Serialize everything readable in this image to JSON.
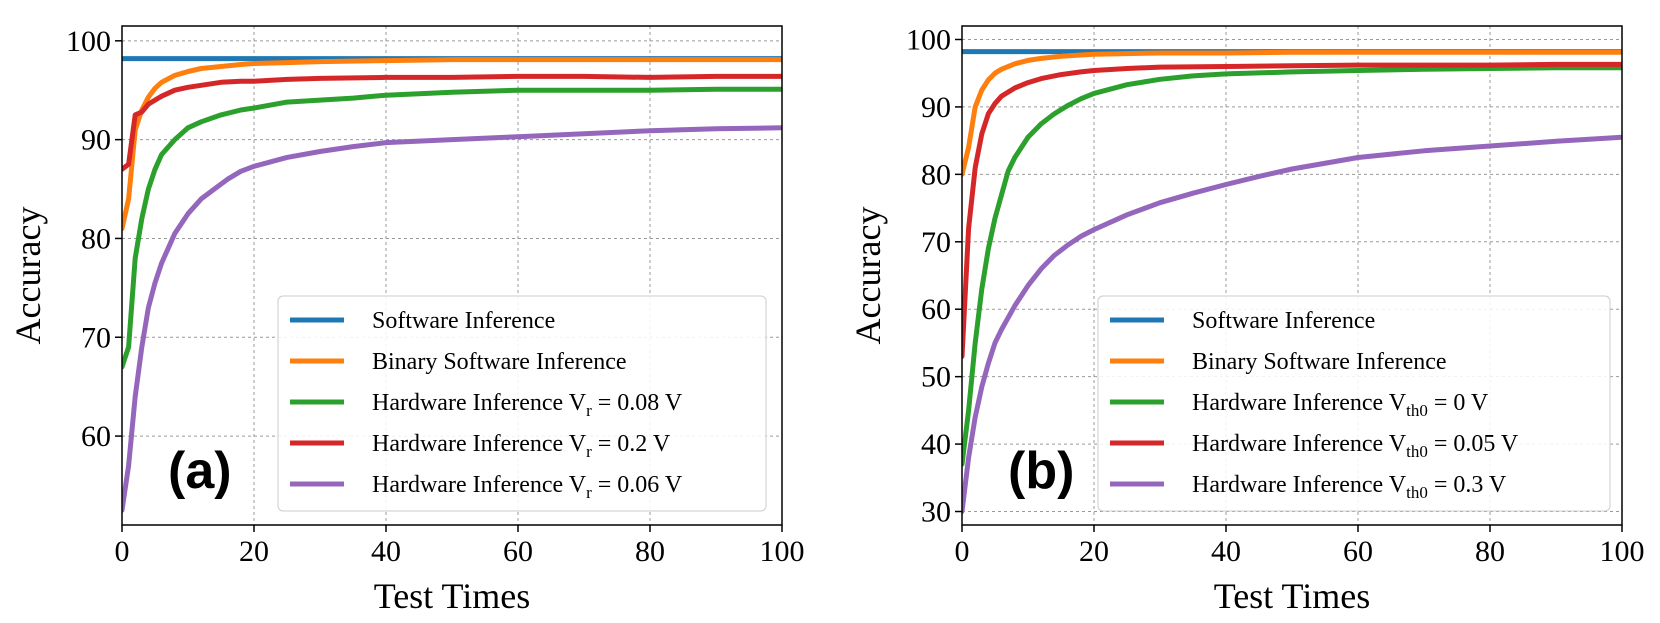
{
  "chart_data": [
    {
      "type": "line",
      "panel_tag": "(a)",
      "xlabel": "Test Times",
      "ylabel": "Accuracy",
      "xlim": [
        0,
        100
      ],
      "ylim": [
        51,
        101.5
      ],
      "xticks": [
        0,
        20,
        40,
        60,
        80,
        100
      ],
      "yticks": [
        60,
        70,
        80,
        90,
        100
      ],
      "grid": true,
      "legend_position": "lower-right",
      "series": [
        {
          "name": "Software Inference",
          "color": "#1f77b4",
          "x": [
            0,
            100
          ],
          "values": [
            98.2,
            98.2
          ]
        },
        {
          "name": "Binary Software Inference",
          "color": "#ff7f0e",
          "x": [
            0,
            1,
            2,
            3,
            4,
            5,
            6,
            8,
            10,
            12,
            15,
            18,
            20,
            25,
            30,
            40,
            50,
            60,
            70,
            80,
            90,
            100
          ],
          "values": [
            81,
            84,
            91,
            93,
            94.3,
            95.2,
            95.8,
            96.5,
            96.9,
            97.2,
            97.4,
            97.6,
            97.7,
            97.8,
            97.9,
            98.0,
            98.1,
            98.1,
            98.1,
            98.1,
            98.1,
            98.1
          ]
        },
        {
          "name": "Hardware Inference V_r = 0.08 V",
          "color": "#2ca02c",
          "x": [
            0,
            1,
            2,
            3,
            4,
            5,
            6,
            8,
            10,
            12,
            15,
            18,
            20,
            25,
            30,
            35,
            40,
            50,
            60,
            70,
            80,
            90,
            100
          ],
          "values": [
            67,
            69,
            78,
            82,
            85,
            87,
            88.5,
            90,
            91.2,
            91.8,
            92.5,
            93,
            93.2,
            93.8,
            94.0,
            94.2,
            94.5,
            94.8,
            95.0,
            95.0,
            95.0,
            95.1,
            95.1
          ]
        },
        {
          "name": "Hardware Inference V_r = 0.2 V",
          "color": "#d62728",
          "x": [
            0,
            1,
            2,
            3,
            4,
            5,
            6,
            8,
            10,
            12,
            15,
            18,
            20,
            25,
            30,
            40,
            50,
            60,
            70,
            80,
            90,
            100
          ],
          "values": [
            87,
            87.5,
            92.5,
            92.8,
            93.6,
            94.0,
            94.4,
            95.0,
            95.3,
            95.5,
            95.8,
            95.9,
            95.9,
            96.1,
            96.2,
            96.3,
            96.3,
            96.4,
            96.4,
            96.3,
            96.4,
            96.4
          ]
        },
        {
          "name": "Hardware Inference V_r = 0.06 V",
          "color": "#9467bd",
          "x": [
            0,
            1,
            2,
            3,
            4,
            5,
            6,
            7,
            8,
            10,
            12,
            14,
            16,
            18,
            20,
            25,
            30,
            35,
            40,
            50,
            60,
            70,
            80,
            90,
            100
          ],
          "values": [
            52.5,
            57,
            64,
            69,
            73,
            75.5,
            77.5,
            79,
            80.5,
            82.5,
            84,
            85,
            86,
            86.8,
            87.3,
            88.2,
            88.8,
            89.3,
            89.7,
            90.0,
            90.3,
            90.6,
            90.9,
            91.1,
            91.2
          ]
        }
      ]
    },
    {
      "type": "line",
      "panel_tag": "(b)",
      "xlabel": "Test Times",
      "ylabel": "Accuracy",
      "xlim": [
        0,
        100
      ],
      "ylim": [
        28,
        102
      ],
      "xticks": [
        0,
        20,
        40,
        60,
        80,
        100
      ],
      "yticks": [
        30,
        40,
        50,
        60,
        70,
        80,
        90,
        100
      ],
      "grid": true,
      "legend_position": "lower-right",
      "series": [
        {
          "name": "Software Inference",
          "color": "#1f77b4",
          "x": [
            0,
            100
          ],
          "values": [
            98.2,
            98.2
          ]
        },
        {
          "name": "Binary Software Inference",
          "color": "#ff7f0e",
          "x": [
            0,
            1,
            2,
            3,
            4,
            5,
            6,
            8,
            10,
            12,
            15,
            18,
            20,
            25,
            30,
            40,
            50,
            60,
            70,
            80,
            90,
            100
          ],
          "values": [
            80,
            84,
            90,
            92.5,
            94,
            95,
            95.6,
            96.4,
            96.9,
            97.2,
            97.5,
            97.7,
            97.8,
            97.9,
            98.0,
            98.0,
            98.1,
            98.1,
            98.1,
            98.1,
            98.1,
            98.1
          ]
        },
        {
          "name": "Hardware Inference V_th0 = 0 V",
          "color": "#2ca02c",
          "x": [
            0,
            1,
            2,
            3,
            4,
            5,
            6,
            7,
            8,
            10,
            12,
            14,
            16,
            18,
            20,
            25,
            30,
            35,
            40,
            50,
            60,
            70,
            80,
            90,
            100
          ],
          "values": [
            37,
            45,
            55,
            63,
            69,
            73.5,
            77,
            80.5,
            82.5,
            85.5,
            87.5,
            89,
            90.2,
            91.2,
            92,
            93.3,
            94.1,
            94.6,
            94.9,
            95.2,
            95.4,
            95.6,
            95.7,
            95.8,
            95.8
          ]
        },
        {
          "name": "Hardware Inference V_th0 = 0.05 V",
          "color": "#d62728",
          "x": [
            0,
            1,
            2,
            3,
            4,
            5,
            6,
            8,
            10,
            12,
            15,
            18,
            20,
            25,
            30,
            40,
            50,
            60,
            70,
            80,
            90,
            100
          ],
          "values": [
            53,
            72,
            81,
            86,
            89,
            90.5,
            91.6,
            92.8,
            93.6,
            94.2,
            94.8,
            95.2,
            95.4,
            95.7,
            95.9,
            96.0,
            96.1,
            96.2,
            96.2,
            96.2,
            96.3,
            96.3
          ]
        },
        {
          "name": "Hardware Inference V_th0 = 0.3 V",
          "color": "#9467bd",
          "x": [
            0,
            1,
            2,
            3,
            4,
            5,
            6,
            8,
            10,
            12,
            14,
            16,
            18,
            20,
            25,
            30,
            35,
            40,
            45,
            50,
            60,
            70,
            80,
            90,
            100
          ],
          "values": [
            30,
            38,
            44,
            48.5,
            52,
            55,
            57,
            60.5,
            63.5,
            66,
            68,
            69.5,
            70.8,
            71.8,
            74,
            75.8,
            77.2,
            78.5,
            79.7,
            80.8,
            82.5,
            83.5,
            84.2,
            84.9,
            85.5
          ]
        }
      ]
    }
  ],
  "legend_labels": [
    [
      {
        "main": "Software Inference",
        "sub": "",
        "tail": ""
      },
      {
        "main": "Binary Software Inference",
        "sub": "",
        "tail": ""
      },
      {
        "main": "Hardware Inference V",
        "sub": "r",
        "tail": " = 0.08 V"
      },
      {
        "main": "Hardware Inference V",
        "sub": "r",
        "tail": " = 0.2 V"
      },
      {
        "main": "Hardware Inference V",
        "sub": "r",
        "tail": " = 0.06 V"
      }
    ],
    [
      {
        "main": "Software Inference",
        "sub": "",
        "tail": ""
      },
      {
        "main": "Binary Software Inference",
        "sub": "",
        "tail": ""
      },
      {
        "main": "Hardware Inference V",
        "sub": "th0",
        "tail": " = 0 V"
      },
      {
        "main": "Hardware Inference V",
        "sub": "th0",
        "tail": " = 0.05 V"
      },
      {
        "main": "Hardware Inference V",
        "sub": "th0",
        "tail": " = 0.3 V"
      }
    ]
  ]
}
